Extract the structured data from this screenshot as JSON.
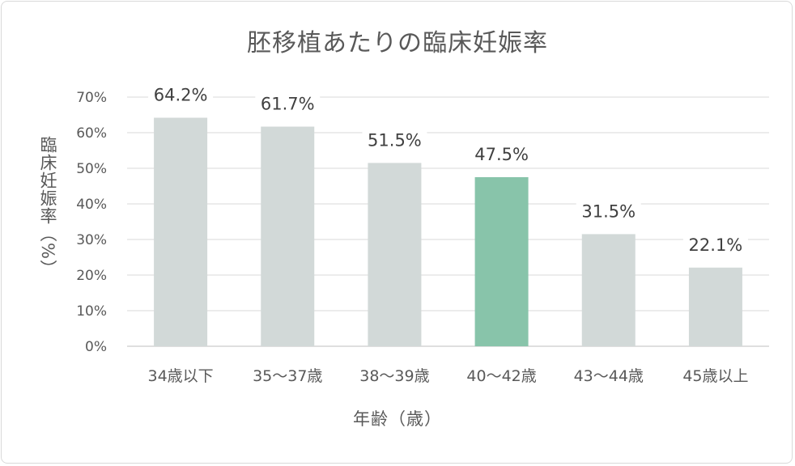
{
  "chart_data": {
    "type": "bar",
    "title": "胚移植あたりの臨床妊娠率",
    "xlabel": "年齢（歳）",
    "ylabel": "臨床妊娠率（%）",
    "categories": [
      "34歳以下",
      "35〜37歳",
      "38〜39歳",
      "40〜42歳",
      "43〜44歳",
      "45歳以上"
    ],
    "values": [
      64.2,
      61.7,
      51.5,
      47.5,
      31.5,
      22.1
    ],
    "value_labels": [
      "64.2%",
      "61.7%",
      "51.5%",
      "47.5%",
      "31.5%",
      "22.1%"
    ],
    "ylim": [
      0,
      70
    ],
    "yticks": [
      "0%",
      "10%",
      "20%",
      "30%",
      "40%",
      "50%",
      "60%",
      "70%"
    ],
    "highlight_index": 3,
    "grid": true,
    "legend": "none",
    "colors": {
      "bar": "#d2d9d8",
      "highlight": "#88c4aa",
      "grid": "#d9d9d9"
    }
  }
}
